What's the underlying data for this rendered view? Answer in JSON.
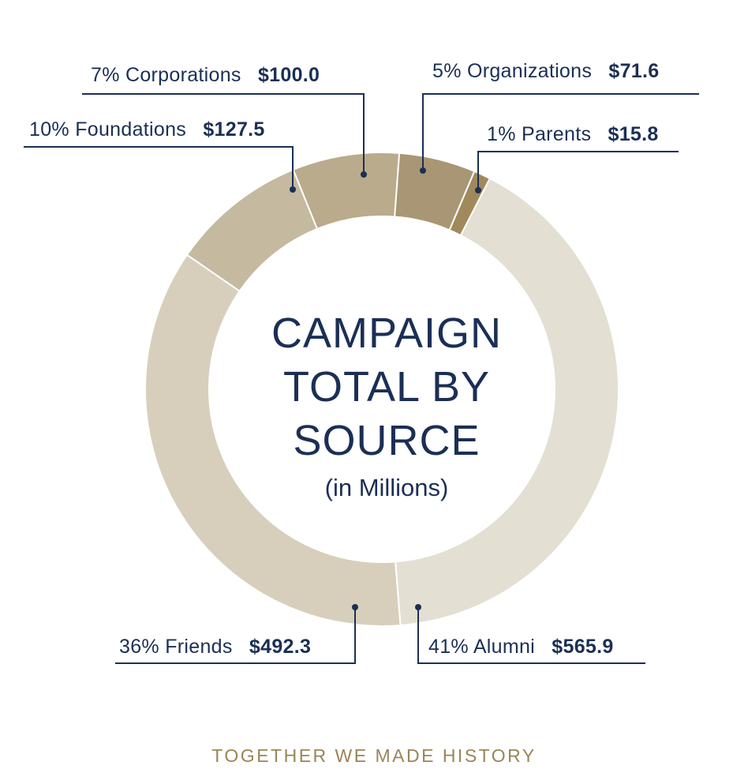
{
  "chart_data": {
    "type": "pie",
    "variant": "donut",
    "title": [
      "CAMPAIGN",
      "TOTAL BY",
      "SOURCE"
    ],
    "subtitle": "(in Millions)",
    "slices": [
      {
        "key": "parents",
        "pct": "1%",
        "name": "Parents",
        "amount": "$15.8",
        "value": 15.8,
        "color": "#a08a5c"
      },
      {
        "key": "alumni",
        "pct": "41%",
        "name": "Alumni",
        "amount": "$565.9",
        "value": 565.9,
        "color": "#e3dfd2"
      },
      {
        "key": "friends",
        "pct": "36%",
        "name": "Friends",
        "amount": "$492.3",
        "value": 492.3,
        "color": "#d7cfbc"
      },
      {
        "key": "foundations",
        "pct": "10%",
        "name": "Foundations",
        "amount": "$127.5",
        "value": 127.5,
        "color": "#c5b9a0"
      },
      {
        "key": "corporations",
        "pct": "7%",
        "name": "Corporations",
        "amount": "$100.0",
        "value": 100.0,
        "color": "#b9ab8b"
      },
      {
        "key": "organizations",
        "pct": "5%",
        "name": "Organizations",
        "amount": "$71.6",
        "value": 71.6,
        "color": "#a89674"
      }
    ]
  },
  "footer": "TOGETHER WE MADE HISTORY"
}
